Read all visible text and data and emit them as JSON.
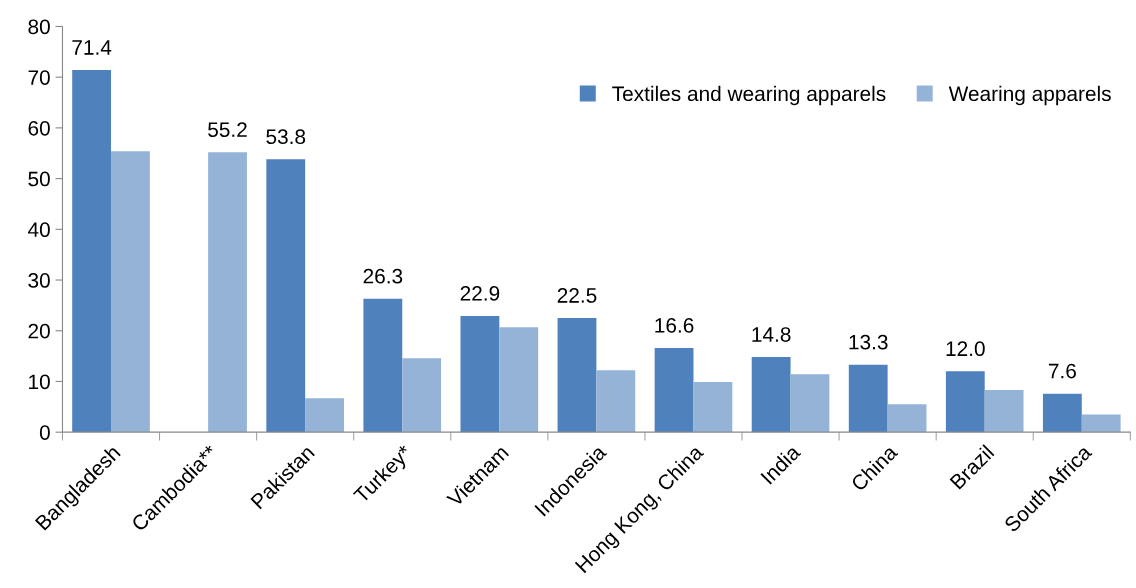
{
  "chart_data": {
    "type": "bar",
    "categories": [
      "Bangladesh",
      "Cambodia**",
      "Pakistan",
      "Turkey*",
      "Vietnam",
      "Indonesia",
      "Hong Kong, China",
      "India",
      "China",
      "Brazil",
      "South Africa"
    ],
    "series": [
      {
        "name": "Textiles and wearing apparels",
        "color": "#4f81bd",
        "values": [
          71.4,
          null,
          53.8,
          26.3,
          22.9,
          22.5,
          16.6,
          14.8,
          13.3,
          12.0,
          7.6
        ],
        "value_labels": [
          "71.4",
          null,
          "53.8",
          "26.3",
          "22.9",
          "22.5",
          "16.6",
          "14.8",
          "13.3",
          "12.0",
          "7.6"
        ]
      },
      {
        "name": "Wearing apparels",
        "color": "#95b3d7",
        "values": [
          55.4,
          55.2,
          6.7,
          14.6,
          20.7,
          12.2,
          9.9,
          11.4,
          5.5,
          8.3,
          3.5
        ],
        "value_labels": [
          null,
          "55.2",
          null,
          null,
          null,
          null,
          null,
          null,
          null,
          null,
          null
        ]
      }
    ],
    "ylim": [
      0,
      80
    ],
    "yticks": [
      0,
      10,
      20,
      30,
      40,
      50,
      60,
      70,
      80
    ],
    "grid": false,
    "legend": "top right"
  }
}
